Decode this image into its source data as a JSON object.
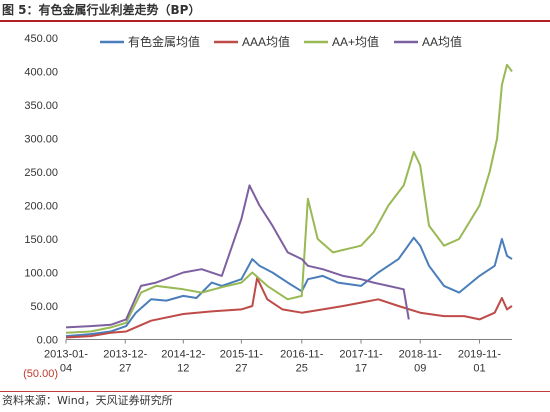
{
  "title": "图 5：有色金属行业利差走势（BP）",
  "source": "资料来源：Wind，天风证券研究所",
  "chart_data": {
    "type": "line",
    "y_ticks": [
      "(50.00)",
      "0.00",
      "50.00",
      "100.00",
      "150.00",
      "200.00",
      "250.00",
      "300.00",
      "350.00",
      "400.00",
      "450.00"
    ],
    "y_tick_values": [
      -50,
      0,
      50,
      100,
      150,
      200,
      250,
      300,
      350,
      400,
      450
    ],
    "ylim": [
      -50,
      450
    ],
    "x_tick_dates": [
      "2013-01-04",
      "2013-12-27",
      "2014-12-12",
      "2015-11-27",
      "2016-11-25",
      "2017-11-17",
      "2018-11-09",
      "2019-11-01"
    ],
    "x_tick_line1": [
      "2013-01-",
      "2013-12-",
      "2014-12-",
      "2015-11-",
      "2016-11-",
      "2017-11-",
      "2018-11-",
      "2019-11-"
    ],
    "x_tick_line2": [
      "04",
      "27",
      "12",
      "27",
      "25",
      "17",
      "09",
      "01"
    ],
    "xlim": [
      "2013-01-04",
      "2020-05-15"
    ],
    "legend_position": "top",
    "series": [
      {
        "name": "有色金属均值",
        "color": "#4a7ebb",
        "points": [
          [
            "2013-01-04",
            5
          ],
          [
            "2013-06-01",
            8
          ],
          [
            "2013-10-01",
            12
          ],
          [
            "2014-01-01",
            20
          ],
          [
            "2014-03-01",
            40
          ],
          [
            "2014-06-01",
            60
          ],
          [
            "2014-09-01",
            58
          ],
          [
            "2014-12-12",
            65
          ],
          [
            "2015-03-01",
            62
          ],
          [
            "2015-06-01",
            85
          ],
          [
            "2015-08-01",
            80
          ],
          [
            "2015-11-27",
            90
          ],
          [
            "2016-02-01",
            120
          ],
          [
            "2016-03-15",
            110
          ],
          [
            "2016-06-01",
            100
          ],
          [
            "2016-09-01",
            85
          ],
          [
            "2016-11-25",
            72
          ],
          [
            "2017-01-01",
            90
          ],
          [
            "2017-04-01",
            95
          ],
          [
            "2017-07-01",
            85
          ],
          [
            "2017-11-17",
            80
          ],
          [
            "2018-03-01",
            100
          ],
          [
            "2018-07-01",
            120
          ],
          [
            "2018-10-01",
            152
          ],
          [
            "2018-11-09",
            140
          ],
          [
            "2019-01-01",
            110
          ],
          [
            "2019-04-01",
            80
          ],
          [
            "2019-07-01",
            70
          ],
          [
            "2019-11-01",
            95
          ],
          [
            "2020-02-01",
            110
          ],
          [
            "2020-03-15",
            150
          ],
          [
            "2020-04-15",
            125
          ],
          [
            "2020-05-15",
            120
          ]
        ]
      },
      {
        "name": "AAA均值",
        "color": "#be4b48",
        "points": [
          [
            "2013-01-04",
            3
          ],
          [
            "2013-06-01",
            5
          ],
          [
            "2013-10-01",
            10
          ],
          [
            "2014-01-01",
            12
          ],
          [
            "2014-06-01",
            28
          ],
          [
            "2014-12-12",
            38
          ],
          [
            "2015-06-01",
            42
          ],
          [
            "2015-11-27",
            45
          ],
          [
            "2016-02-01",
            50
          ],
          [
            "2016-03-01",
            92
          ],
          [
            "2016-05-01",
            60
          ],
          [
            "2016-08-01",
            45
          ],
          [
            "2016-11-25",
            40
          ],
          [
            "2017-04-01",
            45
          ],
          [
            "2017-08-01",
            50
          ],
          [
            "2017-11-17",
            55
          ],
          [
            "2018-03-01",
            60
          ],
          [
            "2018-07-01",
            50
          ],
          [
            "2018-11-09",
            40
          ],
          [
            "2019-04-01",
            35
          ],
          [
            "2019-08-01",
            35
          ],
          [
            "2019-11-01",
            30
          ],
          [
            "2020-02-01",
            40
          ],
          [
            "2020-03-15",
            62
          ],
          [
            "2020-04-15",
            45
          ],
          [
            "2020-05-15",
            50
          ]
        ]
      },
      {
        "name": "AA+均值",
        "color": "#98b954",
        "points": [
          [
            "2013-01-04",
            10
          ],
          [
            "2013-06-01",
            12
          ],
          [
            "2013-10-01",
            18
          ],
          [
            "2014-01-01",
            25
          ],
          [
            "2014-04-01",
            70
          ],
          [
            "2014-07-01",
            80
          ],
          [
            "2014-12-12",
            75
          ],
          [
            "2015-04-01",
            70
          ],
          [
            "2015-08-01",
            78
          ],
          [
            "2015-11-27",
            85
          ],
          [
            "2016-02-01",
            100
          ],
          [
            "2016-05-01",
            80
          ],
          [
            "2016-09-01",
            60
          ],
          [
            "2016-11-25",
            65
          ],
          [
            "2017-01-01",
            210
          ],
          [
            "2017-03-01",
            150
          ],
          [
            "2017-06-01",
            130
          ],
          [
            "2017-11-17",
            140
          ],
          [
            "2018-02-01",
            160
          ],
          [
            "2018-05-01",
            200
          ],
          [
            "2018-08-01",
            230
          ],
          [
            "2018-10-01",
            280
          ],
          [
            "2018-11-09",
            260
          ],
          [
            "2019-01-01",
            170
          ],
          [
            "2019-04-01",
            140
          ],
          [
            "2019-07-01",
            150
          ],
          [
            "2019-11-01",
            200
          ],
          [
            "2020-01-01",
            250
          ],
          [
            "2020-02-15",
            300
          ],
          [
            "2020-03-15",
            380
          ],
          [
            "2020-04-15",
            410
          ],
          [
            "2020-05-15",
            400
          ]
        ]
      },
      {
        "name": "AA均值",
        "color": "#7d60a0",
        "points": [
          [
            "2013-01-04",
            18
          ],
          [
            "2013-06-01",
            20
          ],
          [
            "2013-10-01",
            22
          ],
          [
            "2014-01-01",
            30
          ],
          [
            "2014-04-01",
            80
          ],
          [
            "2014-07-01",
            85
          ],
          [
            "2014-12-12",
            100
          ],
          [
            "2015-04-01",
            105
          ],
          [
            "2015-08-01",
            95
          ],
          [
            "2015-11-27",
            180
          ],
          [
            "2016-01-15",
            230
          ],
          [
            "2016-03-15",
            200
          ],
          [
            "2016-06-01",
            170
          ],
          [
            "2016-09-01",
            130
          ],
          [
            "2016-11-25",
            120
          ],
          [
            "2017-01-01",
            110
          ],
          [
            "2017-04-01",
            105
          ],
          [
            "2017-08-01",
            95
          ],
          [
            "2017-11-17",
            90
          ],
          [
            "2018-02-01",
            85
          ],
          [
            "2018-05-01",
            80
          ],
          [
            "2018-08-01",
            75
          ],
          [
            "2018-09-01",
            30
          ]
        ]
      }
    ]
  }
}
